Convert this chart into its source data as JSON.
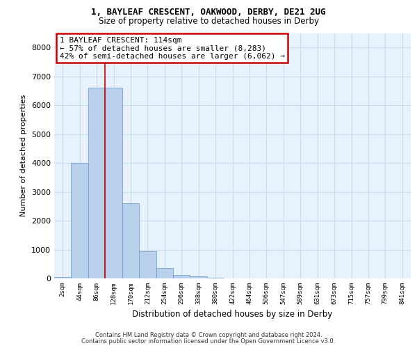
{
  "title_line1": "1, BAYLEAF CRESCENT, OAKWOOD, DERBY, DE21 2UG",
  "title_line2": "Size of property relative to detached houses in Derby",
  "xlabel": "Distribution of detached houses by size in Derby",
  "ylabel": "Number of detached properties",
  "footer_line1": "Contains HM Land Registry data © Crown copyright and database right 2024.",
  "footer_line2": "Contains public sector information licensed under the Open Government Licence v3.0.",
  "bin_labels": [
    "2sqm",
    "44sqm",
    "86sqm",
    "128sqm",
    "170sqm",
    "212sqm",
    "254sqm",
    "296sqm",
    "338sqm",
    "380sqm",
    "422sqm",
    "464sqm",
    "506sqm",
    "547sqm",
    "589sqm",
    "631sqm",
    "673sqm",
    "715sqm",
    "757sqm",
    "799sqm",
    "841sqm"
  ],
  "bar_values": [
    55,
    4000,
    6600,
    6600,
    2600,
    950,
    350,
    110,
    70,
    30,
    0,
    0,
    0,
    0,
    0,
    0,
    0,
    0,
    0,
    0,
    0
  ],
  "bar_color": "#b8d0ea",
  "bar_edge_color": "#6699cc",
  "grid_color": "#c8ddf0",
  "bg_color": "#e8f2fc",
  "annotation_line1": "1 BAYLEAF CRESCENT: 114sqm",
  "annotation_line2": "← 57% of detached houses are smaller (8,283)",
  "annotation_line3": "42% of semi-detached houses are larger (6,062) →",
  "ylim_max": 8500,
  "yticks": [
    0,
    1000,
    2000,
    3000,
    4000,
    5000,
    6000,
    7000,
    8000
  ],
  "vline_x": 2.5
}
